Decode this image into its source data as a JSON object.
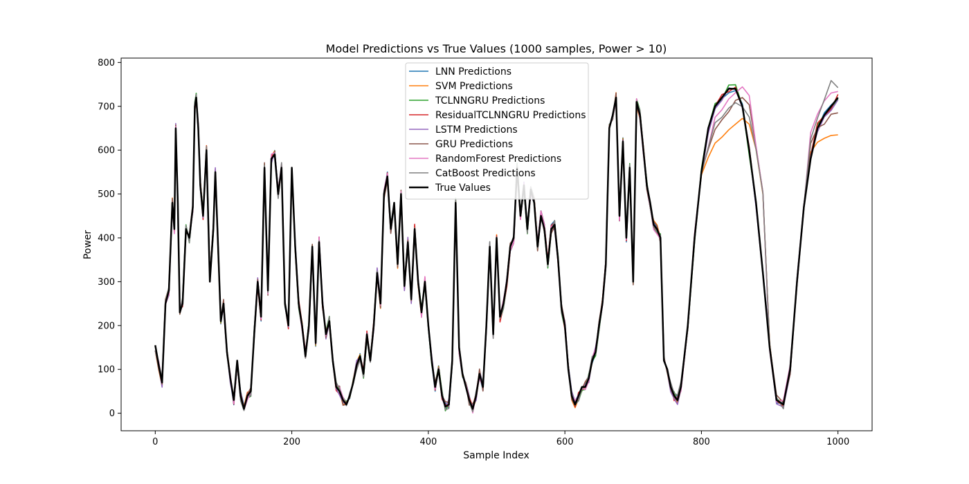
{
  "chart_data": {
    "type": "line",
    "title": "Model Predictions vs True Values (1000 samples, Power > 10)",
    "xlabel": "Sample Index",
    "ylabel": "Power",
    "xlim": [
      -50,
      1050
    ],
    "ylim": [
      -40,
      810
    ],
    "xticks": [
      0,
      200,
      400,
      600,
      800,
      1000
    ],
    "yticks": [
      0,
      100,
      200,
      300,
      400,
      500,
      600,
      700,
      800
    ],
    "grid": false,
    "legend_position": "top-center",
    "true_values": {
      "x": [
        0,
        5,
        10,
        15,
        20,
        25,
        28,
        30,
        33,
        36,
        40,
        45,
        50,
        55,
        58,
        60,
        63,
        66,
        70,
        75,
        80,
        85,
        88,
        92,
        96,
        100,
        105,
        110,
        115,
        120,
        125,
        130,
        135,
        140,
        145,
        150,
        155,
        160,
        165,
        170,
        175,
        180,
        185,
        190,
        195,
        200,
        205,
        210,
        215,
        220,
        225,
        230,
        235,
        240,
        245,
        250,
        255,
        260,
        265,
        270,
        275,
        280,
        285,
        290,
        295,
        300,
        305,
        310,
        315,
        320,
        325,
        330,
        335,
        340,
        345,
        350,
        355,
        360,
        365,
        370,
        375,
        380,
        385,
        390,
        395,
        400,
        405,
        410,
        415,
        420,
        425,
        430,
        435,
        440,
        445,
        450,
        455,
        460,
        465,
        470,
        475,
        480,
        485,
        490,
        495,
        500,
        505,
        510,
        515,
        520,
        525,
        530,
        535,
        540,
        545,
        550,
        555,
        560,
        565,
        570,
        575,
        580,
        585,
        590,
        595,
        600,
        605,
        610,
        615,
        620,
        625,
        630,
        635,
        640,
        645,
        650,
        655,
        660,
        665,
        670,
        675,
        680,
        685,
        690,
        695,
        700,
        705,
        710,
        715,
        720,
        725,
        730,
        735,
        740,
        745,
        750,
        755,
        760,
        765,
        770,
        780,
        790,
        800,
        810,
        820,
        830,
        840,
        850,
        860,
        870,
        880,
        890,
        900,
        910,
        920,
        930,
        940,
        950,
        960,
        970,
        980,
        990,
        1000
      ],
      "y": [
        155,
        110,
        70,
        250,
        280,
        480,
        420,
        650,
        480,
        230,
        250,
        420,
        400,
        470,
        700,
        720,
        650,
        520,
        450,
        600,
        300,
        420,
        550,
        380,
        210,
        250,
        140,
        80,
        30,
        120,
        40,
        10,
        40,
        50,
        180,
        300,
        220,
        560,
        280,
        580,
        590,
        500,
        560,
        250,
        200,
        560,
        380,
        250,
        200,
        130,
        200,
        380,
        160,
        390,
        250,
        180,
        210,
        120,
        60,
        50,
        30,
        20,
        40,
        70,
        110,
        130,
        90,
        180,
        120,
        200,
        320,
        250,
        500,
        540,
        420,
        480,
        340,
        500,
        290,
        390,
        260,
        420,
        300,
        230,
        300,
        200,
        120,
        60,
        100,
        40,
        15,
        20,
        120,
        480,
        150,
        90,
        60,
        30,
        10,
        40,
        90,
        60,
        200,
        380,
        180,
        400,
        220,
        250,
        300,
        380,
        400,
        560,
        450,
        520,
        420,
        510,
        480,
        380,
        450,
        420,
        340,
        420,
        430,
        350,
        240,
        200,
        100,
        40,
        20,
        40,
        60,
        60,
        80,
        120,
        140,
        200,
        250,
        340,
        650,
        680,
        720,
        450,
        620,
        400,
        560,
        300,
        710,
        680,
        600,
        520,
        480,
        430,
        420,
        400,
        120,
        100,
        60,
        40,
        30,
        60,
        200,
        400,
        550,
        650,
        700,
        720,
        740,
        740,
        700,
        600,
        480,
        320,
        150,
        30,
        20,
        100,
        300,
        470,
        580,
        650,
        680,
        700,
        720
      ]
    },
    "series": [
      {
        "name": "LNN Predictions",
        "color": "#1f77b4"
      },
      {
        "name": "SVM Predictions",
        "color": "#ff7f0e"
      },
      {
        "name": "TCLNNGRU Predictions",
        "color": "#2ca02c"
      },
      {
        "name": "ResidualTCLNNGRU Predictions",
        "color": "#d62728"
      },
      {
        "name": "LSTM Predictions",
        "color": "#9467bd"
      },
      {
        "name": "GRU Predictions",
        "color": "#8c564b"
      },
      {
        "name": "RandomForest Predictions",
        "color": "#e377c2"
      },
      {
        "name": "CatBoost Predictions",
        "color": "#7f7f7f"
      },
      {
        "name": "True Values",
        "color": "#000000"
      }
    ],
    "tail_divergence": {
      "x": [
        800,
        820,
        840,
        850,
        860,
        870,
        880,
        890,
        960,
        970,
        980,
        990,
        1000
      ],
      "SVM Predictions": [
        540,
        620,
        645,
        655,
        670,
        660,
        600,
        500,
        600,
        620,
        630,
        635,
        635
      ],
      "GRU Predictions": [
        550,
        650,
        690,
        710,
        720,
        700,
        610,
        500,
        620,
        650,
        660,
        680,
        690
      ],
      "CatBoost Predictions": [
        550,
        660,
        700,
        710,
        700,
        680,
        600,
        500,
        630,
        670,
        720,
        760,
        740
      ],
      "RandomForest Predictions": [
        550,
        670,
        720,
        730,
        740,
        720,
        610,
        500,
        640,
        680,
        710,
        730,
        735
      ]
    }
  }
}
